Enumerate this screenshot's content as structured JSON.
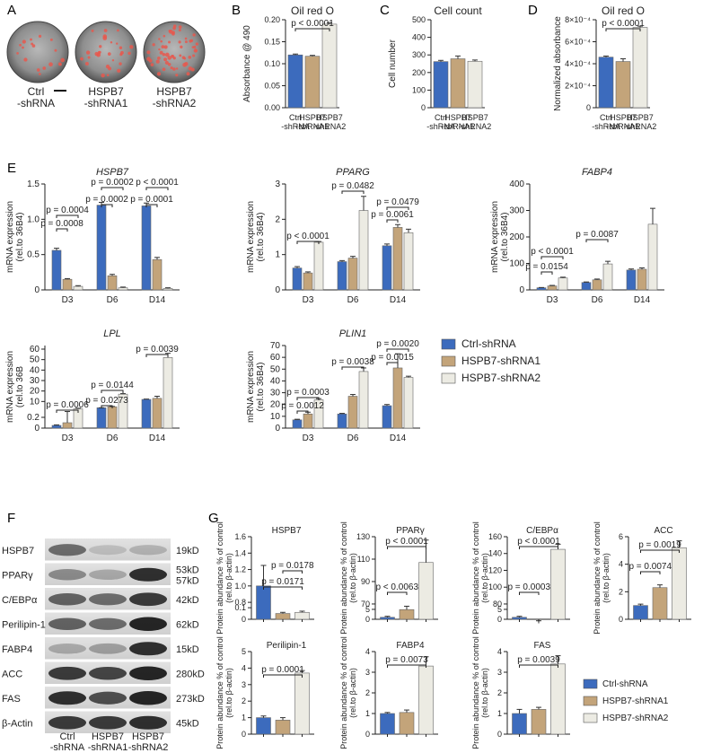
{
  "panels": {
    "A": "A",
    "B": "B",
    "C": "C",
    "D": "D",
    "E": "E",
    "F": "F",
    "G": "G"
  },
  "panel_a": {
    "labels": [
      "Ctrl\n-shRNA",
      "HSPB7\n-shRNA1",
      "HSPB7\n-shRNA2"
    ]
  },
  "legend": {
    "items": [
      "Ctrl-shRNA",
      "HSPB7-shRNA1",
      "HSPB7-shRNA2"
    ]
  },
  "colors": {
    "ctrl": "#3c6bbd",
    "sh1": "#c3a47a",
    "sh2": "#ecebe3"
  },
  "western": {
    "rows": [
      {
        "name": "HSPB7",
        "kd": "19kD"
      },
      {
        "name": "PPARγ",
        "kd": "53kD\n57kD"
      },
      {
        "name": "C/EBPα",
        "kd": "42kD"
      },
      {
        "name": "Perilipin-1",
        "kd": "62kD"
      },
      {
        "name": "FABP4",
        "kd": "15kD"
      },
      {
        "name": "ACC",
        "kd": "280kD"
      },
      {
        "name": "FAS",
        "kd": "273kD"
      },
      {
        "name": "β-Actin",
        "kd": "45kD"
      }
    ],
    "lanes": [
      "Ctrl\n-shRNA",
      "HSPB7\n-shRNA1",
      "HSPB7\n-shRNA2"
    ]
  },
  "chart_data": [
    {
      "id": "B",
      "type": "bar",
      "title": "Oil red O",
      "ylabel": "Absorbance @ 490",
      "categories": [
        "Ctrl\n-shRNA",
        "HSPB7\n-shRNA1",
        "HSPB7\n-shRNA2"
      ],
      "values": [
        0.12,
        0.117,
        0.19
      ],
      "errors": [
        0.002,
        0.002,
        0.003
      ],
      "ylim": [
        0,
        0.2
      ],
      "annotations": [
        "p < 0.0001"
      ]
    },
    {
      "id": "C",
      "type": "bar",
      "title": "Cell count",
      "ylabel": "Cell number",
      "categories": [
        "Ctrl\n-shRNA",
        "HSPB7\n-shRNA1",
        "HSPB7\n-shRNA2"
      ],
      "values": [
        262,
        278,
        264
      ],
      "errors": [
        7,
        16,
        7
      ],
      "ylim": [
        0,
        500
      ]
    },
    {
      "id": "D",
      "type": "bar",
      "title": "Oil red O",
      "ylabel": "Normalized absorbance",
      "categories": [
        "Ctrl\n-shRNA",
        "HSPB7\n-shRNA1",
        "HSPB7\n-shRNA2"
      ],
      "values": [
        4.6,
        4.2,
        7.3
      ],
      "errors": [
        0.1,
        0.25,
        0.12
      ],
      "ylim": [
        0,
        8
      ],
      "yticks": [
        "0",
        "2×10⁻⁴",
        "4×10⁻⁴",
        "6×10⁻⁴",
        "8×10⁻⁴"
      ],
      "annotations": [
        "p < 0.0001"
      ]
    },
    {
      "id": "E-HSPB7",
      "type": "bar",
      "title": "HSPB7",
      "ylabel": "mRNA expression\n(rel.to 36B4)",
      "categories": [
        "D3",
        "D6",
        "D14"
      ],
      "series": [
        {
          "name": "Ctrl-shRNA",
          "values": [
            0.56,
            1.2,
            1.19
          ]
        },
        {
          "name": "HSPB7-shRNA1",
          "values": [
            0.15,
            0.2,
            0.43
          ]
        },
        {
          "name": "HSPB7-shRNA2",
          "values": [
            0.05,
            0.03,
            0.02
          ]
        }
      ],
      "ylim": [
        0,
        1.5
      ],
      "annotations": [
        "p = 0.0004",
        "p = 0.0008",
        "p = 0.0002",
        "p = 0.0002",
        "p < 0.0001",
        "p = 0.0001"
      ]
    },
    {
      "id": "E-PPARG",
      "type": "bar",
      "title": "PPARG",
      "ylabel": "mRNA expression\n(rel.to 36B4)",
      "categories": [
        "D3",
        "D6",
        "D14"
      ],
      "series": [
        {
          "name": "Ctrl-shRNA",
          "values": [
            0.62,
            0.8,
            1.25
          ]
        },
        {
          "name": "HSPB7-shRNA1",
          "values": [
            0.48,
            0.9,
            1.77
          ]
        },
        {
          "name": "HSPB7-shRNA2",
          "values": [
            1.35,
            2.25,
            1.62
          ]
        }
      ],
      "ylim": [
        0,
        3
      ],
      "annotations": [
        "p < 0.0001",
        "p = 0.0482",
        "p = 0.0479",
        "p = 0.0061"
      ]
    },
    {
      "id": "E-FABP4",
      "type": "bar",
      "title": "FABP4",
      "ylabel": "mRNA expression\n(rel.to 36B4)",
      "categories": [
        "D3",
        "D6",
        "D14"
      ],
      "series": [
        {
          "name": "Ctrl-shRNA",
          "values": [
            8,
            28,
            75
          ]
        },
        {
          "name": "HSPB7-shRNA1",
          "values": [
            15,
            38,
            78
          ]
        },
        {
          "name": "HSPB7-shRNA2",
          "values": [
            45,
            98,
            248
          ]
        }
      ],
      "ylim": [
        0,
        400
      ],
      "annotations": [
        "p < 0.0001",
        "p = 0.0154",
        "p = 0.0087"
      ]
    },
    {
      "id": "E-LPL",
      "type": "bar",
      "title": "LPL",
      "ylabel": "mRNA expression\n(rel.to 36B",
      "categories": [
        "D3",
        "D6",
        "D14"
      ],
      "series": [
        {
          "name": "Ctrl-shRNA",
          "values": [
            0.05,
            4,
            12
          ]
        },
        {
          "name": "HSPB7-shRNA1",
          "values": [
            0.1,
            5,
            13
          ]
        },
        {
          "name": "HSPB7-shRNA2",
          "values": [
            3,
            17,
            52
          ]
        }
      ],
      "yticks": [
        "0",
        "0.2",
        "10",
        "20",
        "30",
        "40",
        "50",
        "60"
      ],
      "annotations": [
        "p = 0.0006",
        "p = 0.0144",
        "p = 0.0273",
        "p = 0.0039"
      ]
    },
    {
      "id": "E-PLIN1",
      "type": "bar",
      "title": "PLIN1",
      "ylabel": "mRNA expression\n(rel.to 36B4)",
      "categories": [
        "D3",
        "D6",
        "D14"
      ],
      "series": [
        {
          "name": "Ctrl-shRNA",
          "values": [
            7,
            12,
            19
          ]
        },
        {
          "name": "HSPB7-shRNA1",
          "values": [
            12,
            27,
            51
          ]
        },
        {
          "name": "HSPB7-shRNA2",
          "values": [
            24,
            48,
            43
          ]
        }
      ],
      "ylim": [
        0,
        70
      ],
      "annotations": [
        "p = 0.0003",
        "p = 0.0012",
        "p = 0.0038",
        "p = 0.0020",
        "p = 0.0015"
      ]
    },
    {
      "id": "G-HSPB7",
      "type": "bar",
      "title": "HSPB7",
      "ylabel": "Protein abundance % of control\n(rel.to β-actin)",
      "values": [
        1.0,
        0.05,
        0.06
      ],
      "errors": [
        0.25,
        0.01,
        0.01
      ],
      "yticks": [
        "0",
        "0.1",
        "0.8",
        "1.0",
        "1.2",
        "1.4",
        "1.6"
      ],
      "annotations": [
        "p = 0.0178",
        "p = 0.0171"
      ]
    },
    {
      "id": "G-PPARg",
      "type": "bar",
      "title": "PPARγ",
      "ylabel": "Protein abundance % of control\n(rel.to β-actin)",
      "values": [
        1,
        65,
        107
      ],
      "errors": [
        0.5,
        3,
        20
      ],
      "yticks": [
        "0",
        "5",
        "70",
        "90",
        "110",
        "130"
      ],
      "annotations": [
        "p < 0.0001",
        "p < 0.0063"
      ]
    },
    {
      "id": "G-CEBPa",
      "type": "bar",
      "title": "C/EBPα",
      "ylabel": "Protein abundance % of control\n(rel.to β-actin)",
      "values": [
        1,
        57,
        145
      ],
      "errors": [
        0.5,
        3,
        6
      ],
      "yticks": [
        "0",
        "5",
        "80",
        "100",
        "120",
        "140",
        "160"
      ],
      "annotations": [
        "p < 0.0001",
        "p = 0.0003"
      ]
    },
    {
      "id": "G-ACC",
      "type": "bar",
      "title": "ACC",
      "ylabel": "Protein abundance % of control\n(rel.to β-actin)",
      "values": [
        1,
        2.3,
        5.2
      ],
      "errors": [
        0.1,
        0.2,
        0.5
      ],
      "ylim": [
        0,
        6
      ],
      "annotations": [
        "p = 0.0019",
        "p = 0.0074"
      ]
    },
    {
      "id": "G-Perilipin1",
      "type": "bar",
      "title": "Perilipin-1",
      "ylabel": "Protein abundance % of control\n(rel.to β-actin)",
      "values": [
        1,
        0.85,
        3.7
      ],
      "errors": [
        0.1,
        0.15,
        0.15
      ],
      "ylim": [
        0,
        5
      ],
      "annotations": [
        "p = 0.0001"
      ]
    },
    {
      "id": "G-FABP4",
      "type": "bar",
      "title": "FABP4",
      "ylabel": "Protein abundance % of control\n(rel.to β-actin)",
      "values": [
        1,
        1.05,
        3.3
      ],
      "errors": [
        0.05,
        0.12,
        0.45
      ],
      "ylim": [
        0,
        4
      ],
      "annotations": [
        "p = 0.0073"
      ]
    },
    {
      "id": "G-FAS",
      "type": "bar",
      "title": "FAS",
      "ylabel": "Protein abundance % of control\n(rel.to β-actin)",
      "values": [
        1,
        1.2,
        3.4
      ],
      "errors": [
        0.2,
        0.1,
        0.4
      ],
      "ylim": [
        0,
        4
      ],
      "annotations": [
        "p = 0.0039"
      ]
    }
  ]
}
